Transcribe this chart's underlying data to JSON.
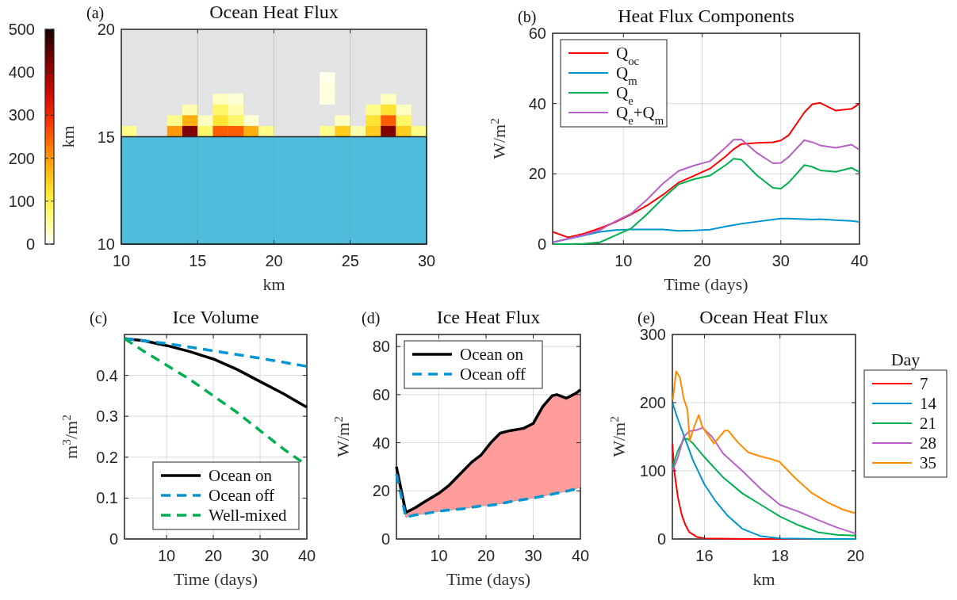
{
  "chart_data": [
    {
      "type": "scatter",
      "title": "Ocean Heat Flux",
      "xlabel": "km",
      "ylabel": "km",
      "annotations": [
        "(a)"
      ],
      "xlim": [
        10,
        30
      ],
      "xticks": [
        10,
        15,
        20,
        25,
        30
      ],
      "ylim": [
        10,
        20
      ],
      "yticks": [
        10,
        15,
        20
      ],
      "grid": "x",
      "clim": [
        0,
        500
      ],
      "cticks": [
        0,
        100,
        200,
        300,
        400,
        500
      ],
      "marker": "square",
      "bands": [
        {
          "axis": "y",
          "from": 10,
          "to": 15,
          "color": "#4fbcdc"
        }
      ],
      "x": [
        23.5,
        23.5,
        16.5,
        17.5,
        23.5,
        27.5,
        14.5,
        16.5,
        17.5,
        26.5,
        27.5,
        28.5,
        13.5,
        14.5,
        15.5,
        16.5,
        17.5,
        18.5,
        24.5,
        26.5,
        27.5,
        28.5,
        10.5,
        13.5,
        14.5,
        15.5,
        16.5,
        17.5,
        18.5,
        19.5,
        23.5,
        24.5,
        25.5,
        26.5,
        27.5,
        28.5,
        29.5
      ],
      "values": [
        17.75,
        17.25,
        16.75,
        16.75,
        16.75,
        16.75,
        16.25,
        16.25,
        16.25,
        16.25,
        16.25,
        16.25,
        15.75,
        15.75,
        15.75,
        15.75,
        15.75,
        15.75,
        15.75,
        15.75,
        15.75,
        15.75,
        15.25,
        15.25,
        15.25,
        15.25,
        15.25,
        15.25,
        15.25,
        15.25,
        15.25,
        15.25,
        15.25,
        15.25,
        15.25,
        15.25,
        15.25
      ],
      "cvalues": [
        10,
        15,
        30,
        20,
        15,
        30,
        40,
        80,
        40,
        60,
        120,
        30,
        60,
        180,
        30,
        120,
        80,
        20,
        30,
        120,
        250,
        80,
        60,
        200,
        420,
        80,
        250,
        250,
        180,
        60,
        60,
        150,
        40,
        150,
        420,
        150,
        60
      ]
    },
    {
      "type": "line",
      "title": "Heat Flux Components",
      "xlabel": "Time (days)",
      "ylabel": "W/m$^{2}$",
      "annotations": [
        "(b)"
      ],
      "xlim": [
        1,
        40
      ],
      "xticks": [
        10,
        20,
        30,
        40
      ],
      "ylim": [
        0,
        60
      ],
      "yticks": [
        0,
        20,
        40,
        60
      ],
      "grid": true,
      "legend": "top left",
      "x": [
        1,
        3,
        5,
        7,
        9,
        11,
        13,
        15,
        17,
        19,
        21,
        23,
        24,
        25,
        27,
        29,
        30,
        31,
        33,
        34,
        35,
        37,
        39,
        40
      ],
      "series": [
        {
          "name": "Q$_{oc}$",
          "color": "#ff0000",
          "values": [
            3.5,
            1.9,
            3.0,
            4.5,
            6.3,
            8.5,
            11,
            14,
            17.5,
            19.5,
            21.5,
            25,
            27,
            28.5,
            28.8,
            29,
            29.5,
            31,
            37.5,
            39.8,
            40.2,
            38,
            38.5,
            40
          ]
        },
        {
          "name": "Q$_{m}$",
          "color": "#0095d0",
          "values": [
            0.5,
            1.5,
            2.5,
            3.5,
            4,
            4.2,
            4.2,
            4.2,
            3.8,
            3.9,
            4.1,
            5,
            5.4,
            5.8,
            6.4,
            7,
            7.3,
            7.3,
            7.1,
            7,
            7.1,
            6.8,
            6.6,
            6.3
          ]
        },
        {
          "name": "Q$_{e}$",
          "color": "#00b050",
          "values": [
            0,
            0,
            0.1,
            0.5,
            2.5,
            4.5,
            8.5,
            13,
            17,
            18.5,
            19.5,
            22.5,
            24.3,
            24,
            19.5,
            16,
            15.8,
            17.5,
            22.5,
            22,
            21,
            20.6,
            21.7,
            20.5
          ]
        },
        {
          "name": "Q$_{e}$+Q$_{m}$",
          "color": "#b860c8",
          "values": [
            0.5,
            1.5,
            2.6,
            4.0,
            6.5,
            8.7,
            12.7,
            17.2,
            20.8,
            22.4,
            23.6,
            27.5,
            29.7,
            29.8,
            25.9,
            23,
            23.1,
            24.8,
            29.6,
            29,
            28.1,
            27.4,
            28.3,
            26.8
          ]
        }
      ]
    },
    {
      "type": "line",
      "title": "Ice Volume",
      "xlabel": "Time (days)",
      "ylabel": "m$^{3}$/m$^{2}$",
      "annotations": [
        "(c)"
      ],
      "xlim": [
        1,
        40
      ],
      "xticks": [
        10,
        20,
        30,
        40
      ],
      "ylim": [
        0,
        0.5
      ],
      "yticks": [
        0,
        0.1,
        0.2,
        0.3,
        0.4
      ],
      "grid": true,
      "legend": "bottom right",
      "x": [
        1,
        5,
        10,
        15,
        20,
        25,
        30,
        35,
        40
      ],
      "series": [
        {
          "name": "Ocean on",
          "color": "#000000",
          "line_style": "solid",
          "values": [
            0.49,
            0.485,
            0.473,
            0.458,
            0.44,
            0.415,
            0.385,
            0.355,
            0.322
          ]
        },
        {
          "name": "Ocean off",
          "color": "#0095d0",
          "line_style": "dashed",
          "values": [
            0.49,
            0.485,
            0.478,
            0.469,
            0.46,
            0.451,
            0.442,
            0.432,
            0.422
          ]
        },
        {
          "name": "Well-mixed",
          "color": "#00b050",
          "line_style": "dashed",
          "values": [
            0.49,
            0.46,
            0.425,
            0.39,
            0.35,
            0.31,
            0.265,
            0.22,
            0.18
          ]
        }
      ]
    },
    {
      "type": "line",
      "title": "Ice Heat Flux",
      "xlabel": "Time (days)",
      "ylabel": "W/m$^{2}$",
      "annotations": [
        "(d)"
      ],
      "xlim": [
        1,
        40
      ],
      "xticks": [
        10,
        20,
        30,
        40
      ],
      "ylim": [
        0,
        85
      ],
      "yticks": [
        0,
        20,
        40,
        60,
        80
      ],
      "grid": true,
      "legend": "top left",
      "x": [
        1,
        3,
        5,
        7,
        10,
        12,
        15,
        17,
        19,
        21,
        23,
        25,
        28,
        30,
        32,
        34,
        35,
        37,
        39,
        40
      ],
      "series": [
        {
          "name": "Ocean on",
          "color": "#000000",
          "line_style": "solid",
          "values": [
            30,
            11,
            13,
            15.5,
            19,
            22,
            28,
            32,
            35,
            40,
            44,
            45,
            46,
            48,
            55,
            59.5,
            60,
            58.5,
            60.5,
            62
          ],
          "lower": [
            27,
            9,
            10,
            10.5,
            11.5,
            12,
            12.5,
            13.2,
            13.8,
            14,
            14.6,
            15.5,
            16.4,
            17,
            17.8,
            18.6,
            19,
            19.8,
            20.8,
            21.5
          ],
          "upper": [
            30,
            11,
            13,
            15.5,
            19,
            22,
            28,
            32,
            35,
            40,
            44,
            45,
            46,
            48,
            55,
            59.5,
            60,
            58.5,
            60.5,
            62
          ]
        },
        {
          "name": "Ocean off",
          "color": "#0095d0",
          "line_style": "dashed",
          "values": [
            27,
            9,
            10,
            10.5,
            11.5,
            12,
            12.5,
            13.2,
            13.8,
            14,
            14.6,
            15.5,
            16.4,
            17,
            17.8,
            18.6,
            19,
            19.8,
            20.8,
            21.5
          ]
        }
      ]
    },
    {
      "type": "line",
      "title": "Ocean Heat Flux",
      "xlabel": "km",
      "ylabel": "W/m$^{2}$",
      "annotations": [
        "(e)"
      ],
      "xlim": [
        15.15,
        20
      ],
      "xticks": [
        16,
        18,
        20
      ],
      "ylim": [
        0,
        300
      ],
      "yticks": [
        0,
        100,
        200,
        300
      ],
      "grid": true,
      "legend": "right",
      "legend_title": "Day",
      "series": [
        {
          "name": "7",
          "color": "#ff0000",
          "x": [
            15.15,
            15.2,
            15.3,
            15.4,
            15.5,
            15.6,
            15.8,
            16,
            17,
            18,
            20
          ],
          "values": [
            140,
            100,
            60,
            35,
            20,
            10,
            3,
            1,
            0,
            0,
            0
          ]
        },
        {
          "name": "14",
          "color": "#0095d0",
          "x": [
            15.15,
            15.3,
            15.5,
            15.7,
            16,
            16.3,
            16.6,
            17,
            17.5,
            18,
            19,
            20
          ],
          "values": [
            200,
            175,
            145,
            115,
            80,
            55,
            35,
            15,
            4,
            1,
            0,
            0
          ]
        },
        {
          "name": "21",
          "color": "#00b050",
          "x": [
            15.15,
            15.3,
            15.45,
            15.55,
            15.7,
            16,
            16.5,
            17,
            17.5,
            18,
            18.5,
            19,
            19.5,
            20
          ],
          "values": [
            105,
            130,
            146,
            147,
            140,
            120,
            90,
            67,
            50,
            33,
            20,
            10,
            6,
            5
          ]
        },
        {
          "name": "28",
          "color": "#b860c8",
          "x": [
            15.15,
            15.3,
            15.45,
            15.6,
            15.8,
            15.95,
            16.2,
            16.5,
            17,
            17.5,
            18,
            18.5,
            19,
            19.5,
            20
          ],
          "values": [
            100,
            120,
            150,
            158,
            160,
            163,
            150,
            125,
            100,
            73,
            50,
            40,
            28,
            17,
            8
          ]
        },
        {
          "name": "35",
          "color": "#ff8c00",
          "x": [
            15.16,
            15.25,
            15.35,
            15.45,
            15.55,
            15.61,
            15.75,
            15.85,
            15.94,
            16.11,
            16.25,
            16.54,
            16.63,
            16.88,
            17.16,
            17.5,
            17.78,
            17.99,
            18.41,
            18.83,
            19.25,
            19.67,
            19.98
          ],
          "values": [
            204,
            246,
            237,
            206,
            190,
            144,
            168,
            182,
            165,
            151,
            140,
            159,
            159,
            142,
            127,
            121,
            117,
            113,
            89,
            68,
            54,
            43,
            38
          ]
        }
      ]
    }
  ]
}
